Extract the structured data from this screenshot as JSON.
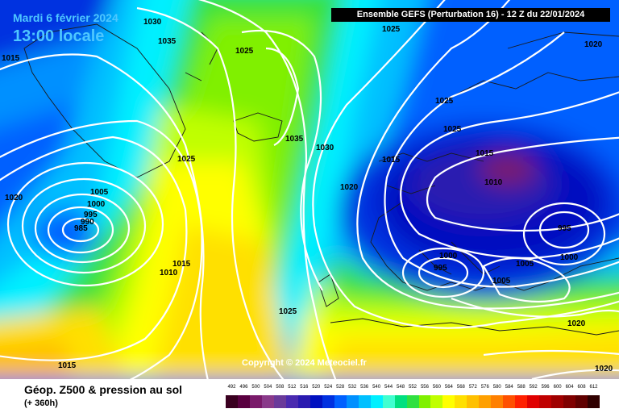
{
  "header": {
    "date": "Mardi 6 février 2024",
    "time": "13:00 locale",
    "run_info": "Ensemble GEFS  (Perturbation 16)  -  12 Z du 22/01/2024"
  },
  "copyright": "Copyright © 2024 Meteociel.fr",
  "legend": {
    "title": "Géop. Z500 & pression au sol",
    "lead_time": "(+ 360h)",
    "scale": [
      {
        "value": "492",
        "color": "#3a0020"
      },
      {
        "value": "496",
        "color": "#5a0040"
      },
      {
        "value": "500",
        "color": "#7a1a6a"
      },
      {
        "value": "504",
        "color": "#8a3a8a"
      },
      {
        "value": "508",
        "color": "#6a3a9a"
      },
      {
        "value": "512",
        "color": "#4a2ab0"
      },
      {
        "value": "516",
        "color": "#2a1ab0"
      },
      {
        "value": "520",
        "color": "#0010c0"
      },
      {
        "value": "524",
        "color": "#0030e0"
      },
      {
        "value": "528",
        "color": "#0060ff"
      },
      {
        "value": "532",
        "color": "#0090ff"
      },
      {
        "value": "536",
        "color": "#00c0ff"
      },
      {
        "value": "540",
        "color": "#00f0ff"
      },
      {
        "value": "544",
        "color": "#40ffd0"
      },
      {
        "value": "548",
        "color": "#00e080"
      },
      {
        "value": "552",
        "color": "#30e040"
      },
      {
        "value": "556",
        "color": "#80f000"
      },
      {
        "value": "560",
        "color": "#c0ff00"
      },
      {
        "value": "564",
        "color": "#ffff00"
      },
      {
        "value": "568",
        "color": "#ffe000"
      },
      {
        "value": "572",
        "color": "#ffc000"
      },
      {
        "value": "576",
        "color": "#ffa000"
      },
      {
        "value": "580",
        "color": "#ff8000"
      },
      {
        "value": "584",
        "color": "#ff5000"
      },
      {
        "value": "588",
        "color": "#ff2000"
      },
      {
        "value": "592",
        "color": "#e00000"
      },
      {
        "value": "596",
        "color": "#c00000"
      },
      {
        "value": "600",
        "color": "#a00000"
      },
      {
        "value": "604",
        "color": "#800000"
      },
      {
        "value": "608",
        "color": "#600000"
      },
      {
        "value": "612",
        "color": "#300000"
      }
    ]
  },
  "pressure_labels": [
    {
      "id": "p1",
      "text": "1030"
    },
    {
      "id": "p2",
      "text": "1035"
    },
    {
      "id": "p3",
      "text": "1015"
    },
    {
      "id": "p4",
      "text": "1025"
    },
    {
      "id": "p5",
      "text": "1025"
    },
    {
      "id": "p6",
      "text": "1020"
    },
    {
      "id": "p7",
      "text": "1025"
    },
    {
      "id": "p8",
      "text": "1025"
    },
    {
      "id": "p9",
      "text": "1035"
    },
    {
      "id": "p10",
      "text": "1030"
    },
    {
      "id": "p11",
      "text": "1015"
    },
    {
      "id": "p12",
      "text": "1015"
    },
    {
      "id": "p13",
      "text": "1010"
    },
    {
      "id": "p14",
      "text": "1025"
    },
    {
      "id": "p15",
      "text": "1005"
    },
    {
      "id": "p16",
      "text": "1000"
    },
    {
      "id": "p17",
      "text": "995"
    },
    {
      "id": "p18",
      "text": "990"
    },
    {
      "id": "p19",
      "text": "985"
    },
    {
      "id": "p20",
      "text": "1020"
    },
    {
      "id": "p21",
      "text": "1020"
    },
    {
      "id": "p22",
      "text": "1015"
    },
    {
      "id": "p23",
      "text": "1010"
    },
    {
      "id": "p24",
      "text": "1025"
    },
    {
      "id": "p25",
      "text": "1000"
    },
    {
      "id": "p26",
      "text": "995"
    },
    {
      "id": "p27",
      "text": "1005"
    },
    {
      "id": "p28",
      "text": "1005"
    },
    {
      "id": "p29",
      "text": "995"
    },
    {
      "id": "p30",
      "text": "1000"
    },
    {
      "id": "p31",
      "text": "1020"
    },
    {
      "id": "p32",
      "text": "1020"
    },
    {
      "id": "p33",
      "text": "1015"
    }
  ]
}
